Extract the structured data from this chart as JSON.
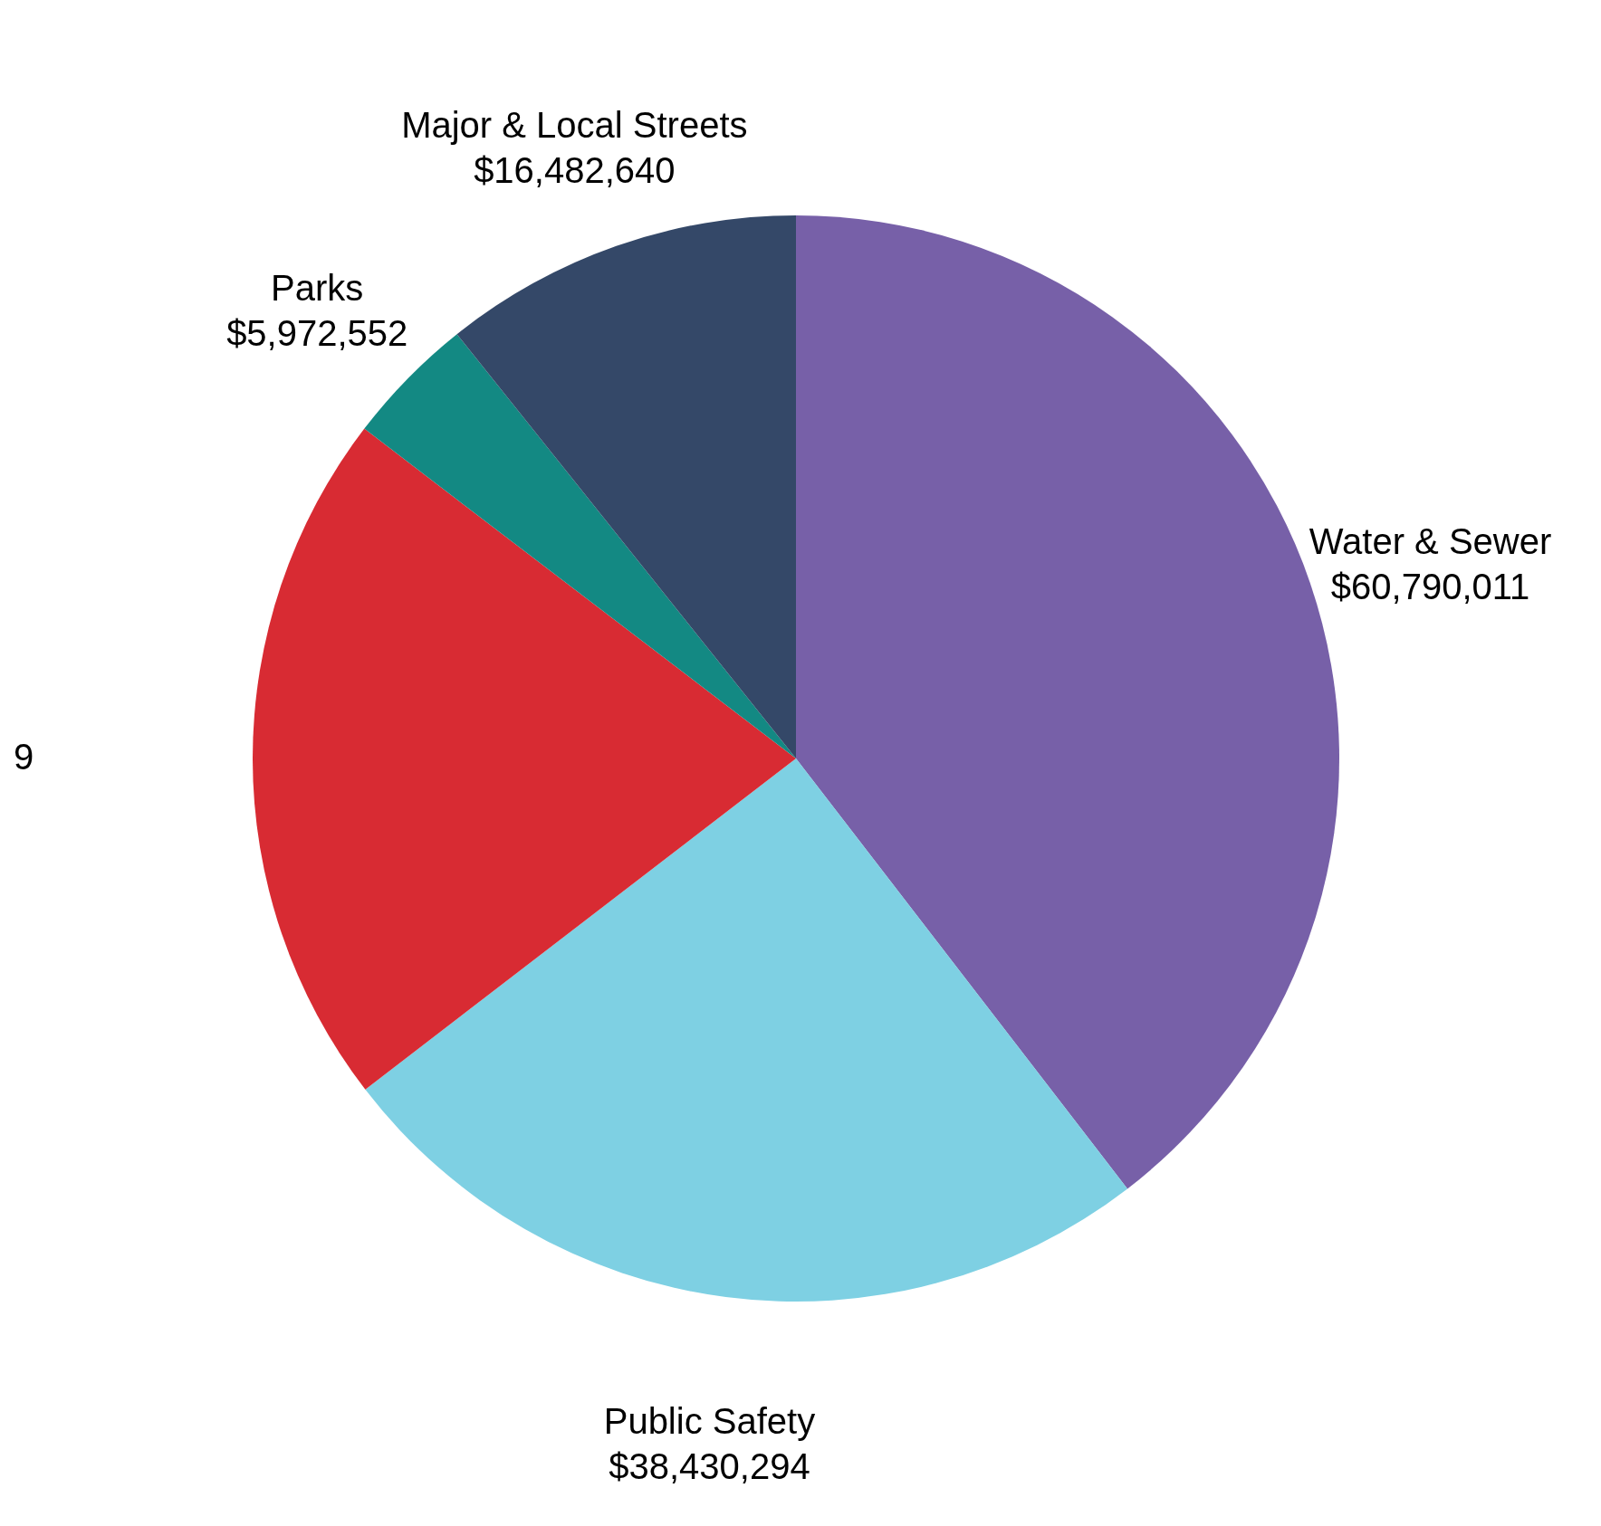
{
  "chart_data": {
    "type": "pie",
    "categories": [
      "Water & Sewer",
      "Public Safety",
      null,
      "Parks",
      "Major & Local Streets"
    ],
    "values": [
      60790011,
      38430294,
      32000000,
      5972552,
      16482640
    ],
    "value_labels": [
      "$60,790,011",
      "$38,430,294",
      null,
      "$5,972,552",
      "$16,482,640"
    ],
    "annotations": [
      "9"
    ],
    "colors": [
      "#7760a8",
      "#7ed0e3",
      "#d82b33",
      "#138983",
      "#344868"
    ],
    "legend": false
  }
}
